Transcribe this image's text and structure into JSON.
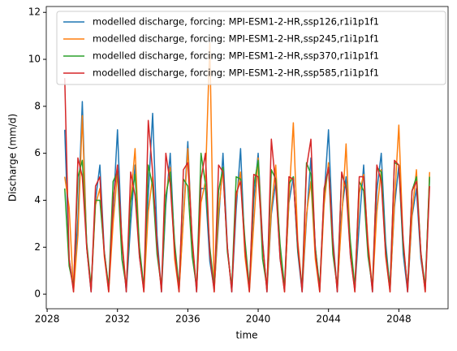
{
  "chart_data": {
    "type": "line",
    "xlabel": "time",
    "ylabel": "Discharge (mm/d)",
    "xlim": [
      2027.95,
      2050.8
    ],
    "xticks": [
      2028,
      2032,
      2036,
      2040,
      2044,
      2048
    ],
    "ylim": [
      -0.62,
      12.25
    ],
    "yticks": [
      0,
      2,
      4,
      6,
      8,
      10,
      12
    ],
    "legend": "upper right",
    "x": [
      2029,
      2029.25,
      2029.5,
      2029.75,
      2030,
      2030.25,
      2030.5,
      2030.75,
      2031,
      2031.25,
      2031.5,
      2031.75,
      2032,
      2032.25,
      2032.5,
      2032.75,
      2033,
      2033.25,
      2033.5,
      2033.75,
      2034,
      2034.25,
      2034.5,
      2034.75,
      2035,
      2035.25,
      2035.5,
      2035.75,
      2036,
      2036.25,
      2036.5,
      2036.75,
      2037,
      2037.25,
      2037.5,
      2037.75,
      2038,
      2038.25,
      2038.5,
      2038.75,
      2039,
      2039.25,
      2039.5,
      2039.75,
      2040,
      2040.25,
      2040.5,
      2040.75,
      2041,
      2041.25,
      2041.5,
      2041.75,
      2042,
      2042.25,
      2042.5,
      2042.75,
      2043,
      2043.25,
      2043.5,
      2043.75,
      2044,
      2044.25,
      2044.5,
      2044.75,
      2045,
      2045.25,
      2045.5,
      2045.75,
      2046,
      2046.25,
      2046.5,
      2046.75,
      2047,
      2047.25,
      2047.5,
      2047.75,
      2048,
      2048.25,
      2048.5,
      2048.75,
      2049,
      2049.25,
      2049.5,
      2049.75
    ],
    "series": [
      {
        "name": "modelled discharge, forcing: MPI-ESM1-2-HR,ssp126,r1i1p1f1",
        "color": "#1f77b4",
        "values": [
          7.0,
          1.5,
          0.2,
          3.2,
          8.2,
          2.0,
          0.1,
          4.0,
          5.5,
          1.8,
          0.2,
          3.5,
          7.0,
          2.2,
          0.1,
          3.0,
          5.5,
          1.6,
          0.2,
          4.2,
          7.7,
          2.5,
          0.1,
          3.8,
          6.0,
          1.9,
          0.2,
          3.3,
          6.5,
          2.1,
          0.1,
          4.5,
          4.5,
          1.4,
          0.2,
          3.1,
          6.0,
          2.0,
          0.1,
          3.6,
          6.2,
          1.7,
          0.2,
          4.0,
          6.0,
          2.3,
          0.1,
          3.4,
          4.8,
          1.5,
          0.2,
          3.9,
          5.0,
          1.8,
          0.1,
          3.2,
          5.8,
          2.0,
          0.2,
          4.1,
          7.0,
          2.4,
          0.1,
          3.5,
          5.0,
          1.6,
          0.2,
          3.0,
          5.5,
          1.9,
          0.1,
          4.4,
          6.0,
          2.2,
          0.2,
          3.7,
          5.5,
          1.7,
          0.1,
          3.3,
          4.5,
          1.5,
          0.2,
          5.0
        ]
      },
      {
        "name": "modelled discharge, forcing: MPI-ESM1-2-HR,ssp245,r1i1p1f1",
        "color": "#ff7f0e",
        "values": [
          5.0,
          3.7,
          0.1,
          2.5,
          7.6,
          2.0,
          0.2,
          3.8,
          4.5,
          1.6,
          0.1,
          3.0,
          5.2,
          2.4,
          0.2,
          4.0,
          6.2,
          1.8,
          0.1,
          3.5,
          5.0,
          2.0,
          0.2,
          4.2,
          5.4,
          1.5,
          0.1,
          3.2,
          6.2,
          2.2,
          0.2,
          3.9,
          4.8,
          10.7,
          0.1,
          3.5,
          5.4,
          1.9,
          0.2,
          4.1,
          5.2,
          1.6,
          0.1,
          3.0,
          5.8,
          2.1,
          0.2,
          3.6,
          5.5,
          1.7,
          0.1,
          4.0,
          7.3,
          2.3,
          0.2,
          3.4,
          4.8,
          1.5,
          0.1,
          3.8,
          5.6,
          2.0,
          0.2,
          3.2,
          6.4,
          1.8,
          0.1,
          4.3,
          5.1,
          2.2,
          0.2,
          3.5,
          5.3,
          1.6,
          0.1,
          3.9,
          7.2,
          2.1,
          0.2,
          3.4,
          5.3,
          1.7,
          0.1,
          5.2
        ]
      },
      {
        "name": "modelled discharge, forcing: MPI-ESM1-2-HR,ssp370,r1i1p1f1",
        "color": "#2ca02c",
        "values": [
          4.5,
          1.2,
          0.3,
          5.0,
          5.7,
          2.2,
          0.3,
          4.0,
          4.0,
          1.8,
          0.3,
          4.8,
          5.2,
          1.5,
          0.3,
          3.9,
          5.1,
          2.0,
          0.3,
          5.5,
          4.6,
          1.7,
          0.3,
          4.2,
          5.2,
          2.2,
          0.3,
          4.9,
          4.6,
          1.6,
          0.3,
          6.0,
          4.7,
          2.0,
          0.3,
          4.4,
          5.4,
          1.8,
          0.3,
          5.0,
          4.9,
          2.3,
          0.3,
          4.6,
          5.7,
          1.5,
          0.3,
          5.3,
          4.9,
          2.1,
          0.3,
          4.7,
          5.0,
          1.9,
          0.3,
          5.6,
          5.1,
          2.0,
          0.3,
          4.3,
          5.4,
          1.7,
          0.3,
          5.1,
          4.6,
          2.2,
          0.3,
          4.8,
          4.4,
          1.6,
          0.3,
          5.4,
          5.2,
          1.9,
          0.3,
          5.6,
          5.5,
          2.0,
          0.3,
          4.4,
          5.0,
          1.8,
          0.3,
          5.0
        ]
      },
      {
        "name": "modelled discharge, forcing: MPI-ESM1-2-HR,ssp585,r1i1p1f1",
        "color": "#d62728",
        "values": [
          9.2,
          1.5,
          0.1,
          5.8,
          5.0,
          2.0,
          0.1,
          4.6,
          5.0,
          1.7,
          0.1,
          4.0,
          5.5,
          2.3,
          0.1,
          5.2,
          4.2,
          1.6,
          0.1,
          7.4,
          5.2,
          2.1,
          0.1,
          6.0,
          4.7,
          1.8,
          0.1,
          5.3,
          5.6,
          2.4,
          0.1,
          4.9,
          6.0,
          1.7,
          0.1,
          5.5,
          5.2,
          2.0,
          0.1,
          4.3,
          4.8,
          1.9,
          0.1,
          5.1,
          5.0,
          2.2,
          0.1,
          6.6,
          4.6,
          1.5,
          0.1,
          5.0,
          4.9,
          2.1,
          0.1,
          5.4,
          6.6,
          1.8,
          0.1,
          4.5,
          5.4,
          2.2,
          0.1,
          5.2,
          4.5,
          1.6,
          0.1,
          5.0,
          5.0,
          2.0,
          0.1,
          5.5,
          4.8,
          1.7,
          0.1,
          5.7,
          5.5,
          2.3,
          0.1,
          4.4,
          4.8,
          1.8,
          0.1,
          4.6
        ]
      }
    ]
  }
}
